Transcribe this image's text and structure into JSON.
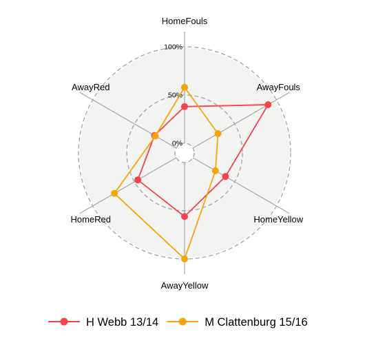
{
  "chart_data": {
    "type": "radar",
    "axes": [
      "HomeFouls",
      "AwayFouls",
      "HomeYellow",
      "AwayYellow",
      "HomeRed",
      "AwayRed"
    ],
    "rlim": [
      0,
      100
    ],
    "ticks": [
      {
        "value": 0,
        "label": "0%"
      },
      {
        "value": 50,
        "label": "50%"
      },
      {
        "value": 100,
        "label": "100%"
      }
    ],
    "series": [
      {
        "name": "H Webb 13/14",
        "color": "#f5424f",
        "values": [
          38,
          90,
          39,
          56,
          46,
          26
        ]
      },
      {
        "name": "M Clattenburg 15/16",
        "color": "#f5a50a",
        "values": [
          58,
          30,
          27,
          100,
          74,
          25
        ]
      }
    ],
    "grid": true,
    "legend_position": "bottom"
  }
}
